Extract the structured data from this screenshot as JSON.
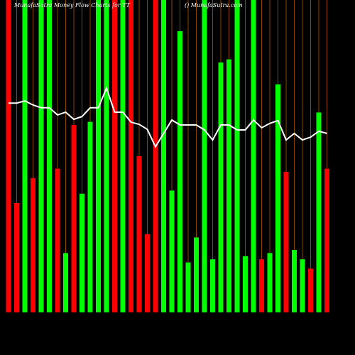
{
  "chart_data": {
    "type": "bar",
    "title": "MunafaSutra  Money Flow  Charts for TT",
    "subtitle": "() MunafaSutra.com",
    "values": [
      100,
      35,
      100,
      43,
      100,
      100,
      46,
      19,
      60,
      38,
      61,
      100,
      100,
      100,
      100,
      100,
      50,
      25,
      100,
      100,
      39,
      90,
      16,
      24,
      100,
      17,
      80,
      81,
      100,
      18,
      100,
      17,
      19,
      73,
      45,
      20,
      17,
      14,
      64,
      46
    ],
    "colors": [
      "#ff0000",
      "#ff0000",
      "#00ff00",
      "#ff0000",
      "#00ff00",
      "#00ff00",
      "#ff0000",
      "#00ff00",
      "#ff0000",
      "#00ff00",
      "#00ff00",
      "#00ff00",
      "#00ff00",
      "#ff0000",
      "#00ff00",
      "#ff0000",
      "#ff0000",
      "#ff0000",
      "#ff0000",
      "#00ff00",
      "#00ff00",
      "#00ff00",
      "#00ff00",
      "#00ff00",
      "#00ff00",
      "#00ff00",
      "#00ff00",
      "#00ff00",
      "#00ff00",
      "#00ff00",
      "#00ff00",
      "#ff0000",
      "#00ff00",
      "#00ff00",
      "#ff0000",
      "#00ff00",
      "#00ff00",
      "#ff0000",
      "#00ff00",
      "#ff0000"
    ],
    "line": {
      "color": "#ffffff",
      "values": [
        67,
        67,
        67.7,
        66.4,
        65.5,
        65.5,
        63.2,
        64.1,
        61.8,
        62.7,
        65.5,
        65.5,
        71.8,
        64.1,
        64.1,
        60.9,
        60.2,
        58.6,
        53,
        57.3,
        61.6,
        60,
        60,
        60,
        58.4,
        55.2,
        60,
        60,
        58.4,
        58.4,
        61.6,
        59.1,
        60.5,
        61.4,
        55.2,
        57.3,
        55.2,
        56.1,
        58,
        57.3
      ]
    },
    "grid_color": "#8b4500",
    "ylim": [
      0,
      100
    ]
  }
}
